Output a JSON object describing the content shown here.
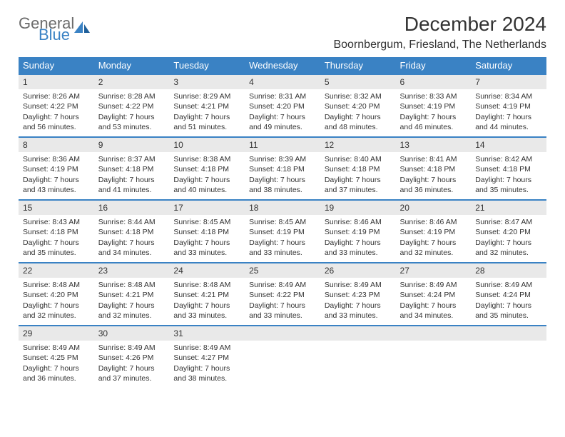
{
  "brand": {
    "part1": "General",
    "part2": "Blue"
  },
  "title": "December 2024",
  "location": "Boornbergum, Friesland, The Netherlands",
  "colors": {
    "accent": "#3a82c4",
    "header_bg": "#3a82c4",
    "daynum_bg": "#e9e9e9",
    "text": "#333333",
    "page_bg": "#ffffff"
  },
  "weekdays": [
    "Sunday",
    "Monday",
    "Tuesday",
    "Wednesday",
    "Thursday",
    "Friday",
    "Saturday"
  ],
  "weeks": [
    [
      {
        "n": "1",
        "sr": "8:26 AM",
        "ss": "4:22 PM",
        "dl": "7 hours and 56 minutes."
      },
      {
        "n": "2",
        "sr": "8:28 AM",
        "ss": "4:22 PM",
        "dl": "7 hours and 53 minutes."
      },
      {
        "n": "3",
        "sr": "8:29 AM",
        "ss": "4:21 PM",
        "dl": "7 hours and 51 minutes."
      },
      {
        "n": "4",
        "sr": "8:31 AM",
        "ss": "4:20 PM",
        "dl": "7 hours and 49 minutes."
      },
      {
        "n": "5",
        "sr": "8:32 AM",
        "ss": "4:20 PM",
        "dl": "7 hours and 48 minutes."
      },
      {
        "n": "6",
        "sr": "8:33 AM",
        "ss": "4:19 PM",
        "dl": "7 hours and 46 minutes."
      },
      {
        "n": "7",
        "sr": "8:34 AM",
        "ss": "4:19 PM",
        "dl": "7 hours and 44 minutes."
      }
    ],
    [
      {
        "n": "8",
        "sr": "8:36 AM",
        "ss": "4:19 PM",
        "dl": "7 hours and 43 minutes."
      },
      {
        "n": "9",
        "sr": "8:37 AM",
        "ss": "4:18 PM",
        "dl": "7 hours and 41 minutes."
      },
      {
        "n": "10",
        "sr": "8:38 AM",
        "ss": "4:18 PM",
        "dl": "7 hours and 40 minutes."
      },
      {
        "n": "11",
        "sr": "8:39 AM",
        "ss": "4:18 PM",
        "dl": "7 hours and 38 minutes."
      },
      {
        "n": "12",
        "sr": "8:40 AM",
        "ss": "4:18 PM",
        "dl": "7 hours and 37 minutes."
      },
      {
        "n": "13",
        "sr": "8:41 AM",
        "ss": "4:18 PM",
        "dl": "7 hours and 36 minutes."
      },
      {
        "n": "14",
        "sr": "8:42 AM",
        "ss": "4:18 PM",
        "dl": "7 hours and 35 minutes."
      }
    ],
    [
      {
        "n": "15",
        "sr": "8:43 AM",
        "ss": "4:18 PM",
        "dl": "7 hours and 35 minutes."
      },
      {
        "n": "16",
        "sr": "8:44 AM",
        "ss": "4:18 PM",
        "dl": "7 hours and 34 minutes."
      },
      {
        "n": "17",
        "sr": "8:45 AM",
        "ss": "4:18 PM",
        "dl": "7 hours and 33 minutes."
      },
      {
        "n": "18",
        "sr": "8:45 AM",
        "ss": "4:19 PM",
        "dl": "7 hours and 33 minutes."
      },
      {
        "n": "19",
        "sr": "8:46 AM",
        "ss": "4:19 PM",
        "dl": "7 hours and 33 minutes."
      },
      {
        "n": "20",
        "sr": "8:46 AM",
        "ss": "4:19 PM",
        "dl": "7 hours and 32 minutes."
      },
      {
        "n": "21",
        "sr": "8:47 AM",
        "ss": "4:20 PM",
        "dl": "7 hours and 32 minutes."
      }
    ],
    [
      {
        "n": "22",
        "sr": "8:48 AM",
        "ss": "4:20 PM",
        "dl": "7 hours and 32 minutes."
      },
      {
        "n": "23",
        "sr": "8:48 AM",
        "ss": "4:21 PM",
        "dl": "7 hours and 32 minutes."
      },
      {
        "n": "24",
        "sr": "8:48 AM",
        "ss": "4:21 PM",
        "dl": "7 hours and 33 minutes."
      },
      {
        "n": "25",
        "sr": "8:49 AM",
        "ss": "4:22 PM",
        "dl": "7 hours and 33 minutes."
      },
      {
        "n": "26",
        "sr": "8:49 AM",
        "ss": "4:23 PM",
        "dl": "7 hours and 33 minutes."
      },
      {
        "n": "27",
        "sr": "8:49 AM",
        "ss": "4:24 PM",
        "dl": "7 hours and 34 minutes."
      },
      {
        "n": "28",
        "sr": "8:49 AM",
        "ss": "4:24 PM",
        "dl": "7 hours and 35 minutes."
      }
    ],
    [
      {
        "n": "29",
        "sr": "8:49 AM",
        "ss": "4:25 PM",
        "dl": "7 hours and 36 minutes."
      },
      {
        "n": "30",
        "sr": "8:49 AM",
        "ss": "4:26 PM",
        "dl": "7 hours and 37 minutes."
      },
      {
        "n": "31",
        "sr": "8:49 AM",
        "ss": "4:27 PM",
        "dl": "7 hours and 38 minutes."
      },
      null,
      null,
      null,
      null
    ]
  ],
  "labels": {
    "sunrise": "Sunrise: ",
    "sunset": "Sunset: ",
    "daylight": "Daylight: "
  }
}
